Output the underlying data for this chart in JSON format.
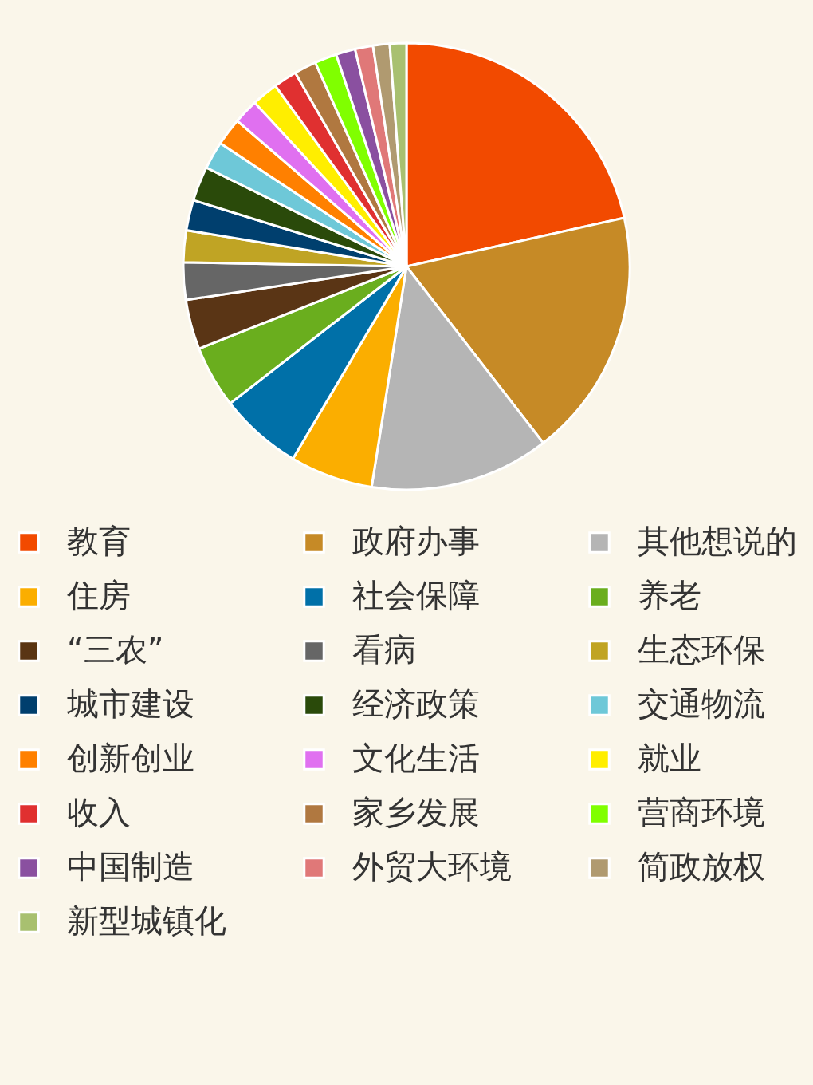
{
  "chart_data": {
    "type": "pie",
    "legend": "bottom",
    "categories": [
      "教育",
      "政府办事",
      "其他想说的",
      "住房",
      "社会保障",
      "养老",
      "“三农”",
      "看病",
      "生态环保",
      "城市建设",
      "经济政策",
      "交通物流",
      "创新创业",
      "文化生活",
      "就业",
      "收入",
      "家乡发展",
      "营商环境",
      "中国制造",
      "外贸大环境",
      "简政放权",
      "新型城镇化"
    ],
    "values": [
      21.5,
      18,
      13,
      6,
      6,
      4.5,
      3.6,
      2.7,
      2.3,
      2.2,
      2.5,
      2,
      2,
      1.8,
      1.9,
      1.7,
      1.6,
      1.6,
      1.4,
      1.3,
      1.2,
      1.2
    ],
    "colors": [
      "#f24a00",
      "#c68a26",
      "#b5b5b5",
      "#fbae00",
      "#0070a8",
      "#6aae1e",
      "#5a3515",
      "#666666",
      "#c0a424",
      "#003f6e",
      "#2a4a0a",
      "#6ec8d8",
      "#ff8000",
      "#e070f0",
      "#ffee00",
      "#e03030",
      "#b07840",
      "#80ff00",
      "#8a50a0",
      "#e07878",
      "#b09a70",
      "#a8c070"
    ]
  }
}
